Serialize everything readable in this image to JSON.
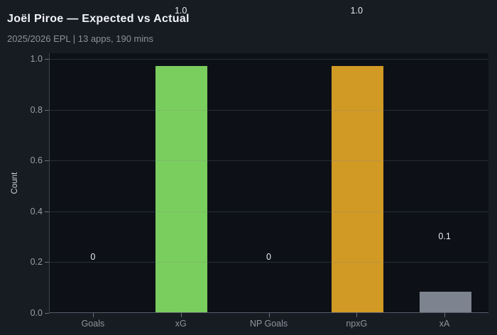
{
  "header": {
    "title": "Joël Piroe — Expected vs Actual",
    "subtitle": "2025/2026 EPL | 13 apps, 190 mins"
  },
  "chart_data": {
    "type": "bar",
    "title": "Joël Piroe — Expected vs Actual",
    "subtitle": "2025/2026 EPL | 13 apps, 190 mins",
    "categories": [
      "Goals",
      "xG",
      "NP Goals",
      "npxG",
      "xA"
    ],
    "values": [
      0,
      0.97,
      0,
      0.97,
      0.08
    ],
    "bar_labels": [
      "0",
      "1.0",
      "0",
      "1.0",
      "0.1"
    ],
    "bar_colors": [
      "#7ace5e",
      "#7ace5e",
      "#d19a24",
      "#d19a24",
      "#7d848f"
    ],
    "xlabel": "",
    "ylabel": "Count",
    "ylim": [
      0,
      1.02
    ],
    "yticks": [
      "0.0",
      "0.2",
      "0.4",
      "0.6",
      "0.8",
      "1.0"
    ],
    "grid": "horizontal-over-bars",
    "legend": "none",
    "colors": {
      "figure_background": "#171b22",
      "plot_background": "#0d1117",
      "green": "#7ace5e",
      "orange": "#d19a24",
      "gray": "#7d848f",
      "title_text": "#f1f3f6",
      "muted_text": "#8b919b",
      "value_label_text": "#e9ebef"
    }
  }
}
